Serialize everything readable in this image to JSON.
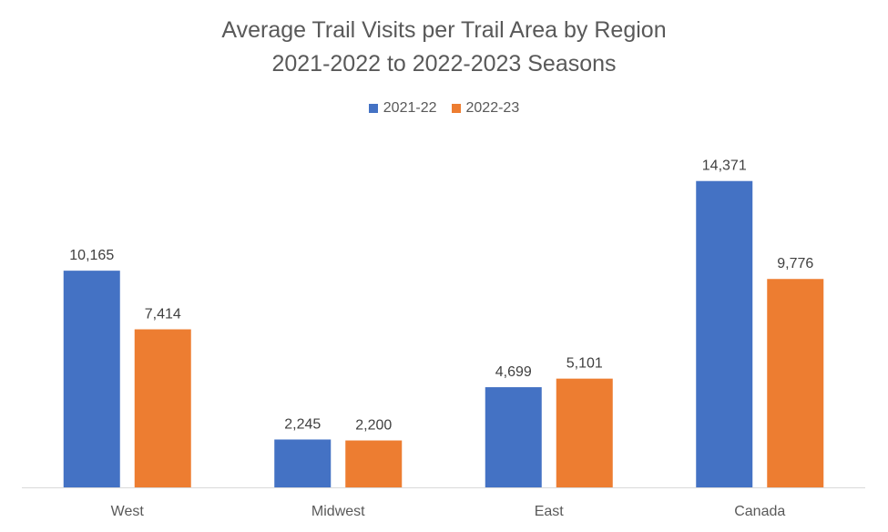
{
  "chart_data": {
    "type": "bar",
    "title_line1": "Average Trail Visits per Trail Area by Region",
    "title_line2": "2021-2022 to 2022-2023 Seasons",
    "categories": [
      "West",
      "Midwest",
      "East",
      "Canada"
    ],
    "series": [
      {
        "name": "2021-22",
        "color": "#4472C4",
        "values": [
          10165,
          2245,
          4699,
          14371
        ],
        "labels": [
          "10,165",
          "2,245",
          "4,699",
          "14,371"
        ]
      },
      {
        "name": "2022-23",
        "color": "#ED7D31",
        "values": [
          7414,
          2200,
          5101,
          9776
        ],
        "labels": [
          "7,414",
          "2,200",
          "5,101",
          "9,776"
        ]
      }
    ],
    "ylim": [
      0,
      16000
    ],
    "grid": false,
    "legend_position": "top"
  }
}
